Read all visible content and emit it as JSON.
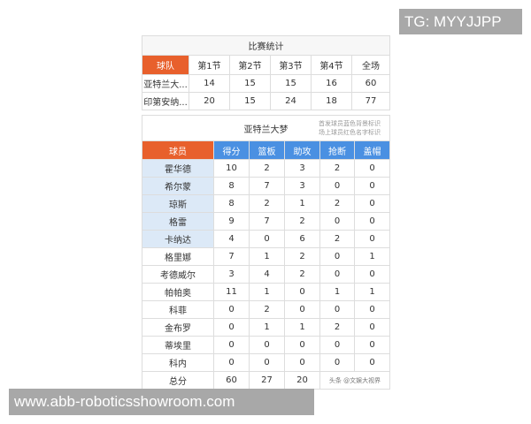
{
  "game_stats": {
    "title": "比赛统计",
    "headers": [
      "球队",
      "第1节",
      "第2节",
      "第3节",
      "第4节",
      "全场"
    ],
    "rows": [
      [
        "亚特兰大...",
        "14",
        "15",
        "15",
        "16",
        "60"
      ],
      [
        "印第安纳...",
        "20",
        "15",
        "24",
        "18",
        "77"
      ]
    ]
  },
  "player_stats": {
    "team": "亚特兰大梦",
    "note_line1": "首发球员蓝色背景标识",
    "note_line2": "场上球员红色名字标识",
    "headers": [
      "球员",
      "得分",
      "篮板",
      "助攻",
      "抢断",
      "盖帽"
    ],
    "rows": [
      {
        "name": "霍华德",
        "starter": true,
        "stats": [
          "10",
          "2",
          "3",
          "2",
          "0"
        ]
      },
      {
        "name": "希尔蒙",
        "starter": true,
        "stats": [
          "8",
          "7",
          "3",
          "0",
          "0"
        ]
      },
      {
        "name": "琼斯",
        "starter": true,
        "stats": [
          "8",
          "2",
          "1",
          "2",
          "0"
        ]
      },
      {
        "name": "格雷",
        "starter": true,
        "stats": [
          "9",
          "7",
          "2",
          "0",
          "0"
        ]
      },
      {
        "name": "卡纳达",
        "starter": true,
        "stats": [
          "4",
          "0",
          "6",
          "2",
          "0"
        ]
      },
      {
        "name": "格里娜",
        "starter": false,
        "stats": [
          "7",
          "1",
          "2",
          "0",
          "1"
        ]
      },
      {
        "name": "考德威尔",
        "starter": false,
        "stats": [
          "3",
          "4",
          "2",
          "0",
          "0"
        ]
      },
      {
        "name": "帕帕奥",
        "starter": false,
        "stats": [
          "11",
          "1",
          "0",
          "1",
          "1"
        ]
      },
      {
        "name": "科菲",
        "starter": false,
        "stats": [
          "0",
          "2",
          "0",
          "0",
          "0"
        ]
      },
      {
        "name": "金布罗",
        "starter": false,
        "stats": [
          "0",
          "1",
          "1",
          "2",
          "0"
        ]
      },
      {
        "name": "蒂埃里",
        "starter": false,
        "stats": [
          "0",
          "0",
          "0",
          "0",
          "0"
        ]
      },
      {
        "name": "科内",
        "starter": false,
        "stats": [
          "0",
          "0",
          "0",
          "0",
          "0"
        ]
      }
    ],
    "total": {
      "label": "总分",
      "stats": [
        "60",
        "27",
        "20"
      ],
      "watermark": "头条 @文娱大视界"
    }
  },
  "overlays": {
    "tg": "TG: MYYJJPP",
    "url": "www.abb-roboticsshowroom.com"
  },
  "colors": {
    "orange": "#e8602c",
    "blue": "#4a90e2",
    "starter_bg": "#dce9f7"
  }
}
